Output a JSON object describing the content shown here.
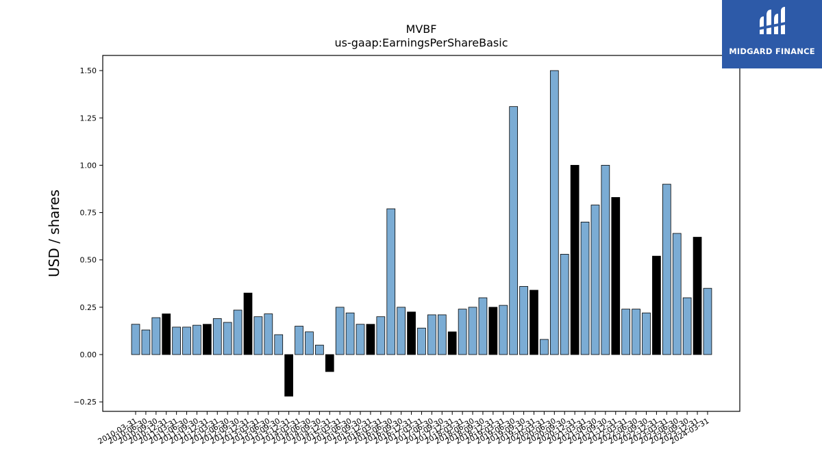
{
  "brand": {
    "name": "MIDGARD FINANCE",
    "background": "#2d5aa8",
    "icon": "midgard-logo-icon"
  },
  "chart_data": {
    "type": "bar",
    "title": "MVBF",
    "subtitle": "us-gaap:EarningsPerShareBasic",
    "ylabel": "USD / shares",
    "xlabel": "",
    "ylim": [
      -0.3,
      1.58
    ],
    "yticks": [
      -0.25,
      0.0,
      0.25,
      0.5,
      0.75,
      1.0,
      1.25,
      1.5
    ],
    "ytick_labels": [
      "−0.25",
      "0.00",
      "0.25",
      "0.50",
      "0.75",
      "1.00",
      "1.25",
      "1.50"
    ],
    "grid": false,
    "colors": {
      "quarterly": "#7bacd4",
      "annual": "#000000",
      "edge": "#000000"
    },
    "categories": [
      "2010-03-31",
      "2010-06-30",
      "2010-09-30",
      "2010-12-31",
      "2011-03-31",
      "2011-06-30",
      "2011-09-30",
      "2011-12-31",
      "2012-03-31",
      "2012-06-30",
      "2012-09-30",
      "2012-12-31",
      "2013-03-31",
      "2013-06-30",
      "2013-09-30",
      "2013-12-31",
      "2014-03-31",
      "2014-06-30",
      "2014-09-30",
      "2014-12-31",
      "2015-03-31",
      "2015-06-30",
      "2015-09-30",
      "2015-12-31",
      "2016-03-31",
      "2016-06-30",
      "2016-09-30",
      "2016-12-31",
      "2017-03-31",
      "2017-06-30",
      "2017-09-30",
      "2017-12-31",
      "2018-03-31",
      "2018-06-30",
      "2018-09-30",
      "2018-12-31",
      "2019-03-31",
      "2019-06-30",
      "2019-09-30",
      "2019-12-31",
      "2020-03-31",
      "2020-06-30",
      "2020-09-30",
      "2020-12-31",
      "2021-03-31",
      "2021-06-30",
      "2021-09-30",
      "2021-12-31",
      "2022-03-31",
      "2022-06-30",
      "2022-09-30",
      "2022-12-31",
      "2023-03-31",
      "2023-06-30",
      "2023-09-30",
      "2023-12-31",
      "2024-03-31"
    ],
    "values": [
      0.16,
      0.13,
      0.195,
      0.215,
      0.145,
      0.145,
      0.155,
      0.16,
      0.19,
      0.17,
      0.235,
      0.325,
      0.2,
      0.215,
      0.105,
      -0.22,
      0.15,
      0.12,
      0.05,
      -0.09,
      0.25,
      0.22,
      0.16,
      0.16,
      0.2,
      0.77,
      0.25,
      0.225,
      0.14,
      0.21,
      0.21,
      0.12,
      0.24,
      0.25,
      0.3,
      0.25,
      0.26,
      1.31,
      0.36,
      0.34,
      0.08,
      1.5,
      0.53,
      1.0,
      0.7,
      0.79,
      1.0,
      0.83,
      0.24,
      0.24,
      0.22,
      0.52,
      0.9,
      0.64,
      0.3,
      0.62,
      0.35
    ],
    "annual_flags": [
      0,
      0,
      0,
      1,
      0,
      0,
      0,
      1,
      0,
      0,
      0,
      1,
      0,
      0,
      0,
      1,
      0,
      0,
      0,
      1,
      0,
      0,
      0,
      1,
      0,
      0,
      0,
      1,
      0,
      0,
      0,
      1,
      0,
      0,
      0,
      1,
      0,
      0,
      0,
      1,
      0,
      0,
      0,
      1,
      0,
      0,
      0,
      1,
      0,
      0,
      0,
      1,
      0,
      0,
      0,
      1,
      0
    ]
  }
}
